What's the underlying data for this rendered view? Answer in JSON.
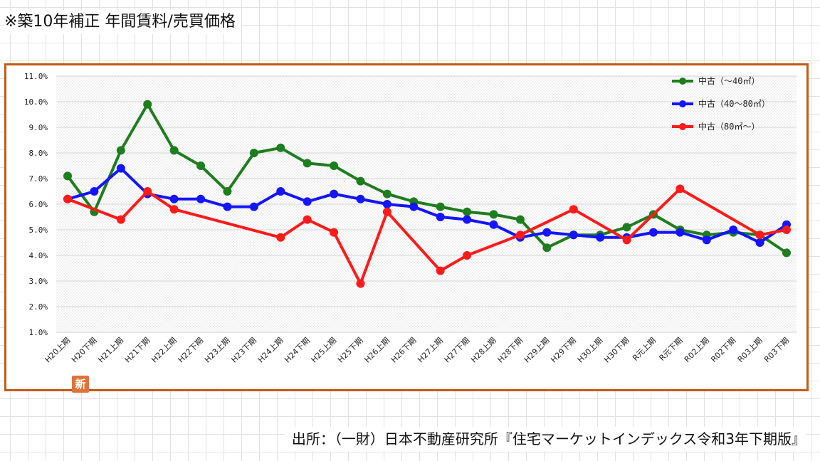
{
  "title": "※築10年補正 年間賃料/売買価格",
  "source": "出所：（一財）日本不動産研究所『住宅マーケットインデックス令和3年下期版』",
  "badge": "新",
  "chart_data": {
    "type": "line",
    "categories": [
      "H20上期",
      "H20下期",
      "H21上期",
      "H21下期",
      "H22上期",
      "H22下期",
      "H23上期",
      "H23下期",
      "H24上期",
      "H24下期",
      "H25上期",
      "H25下期",
      "H26上期",
      "H26下期",
      "H27上期",
      "H27下期",
      "H28上期",
      "H28下期",
      "H29上期",
      "H29下期",
      "H30上期",
      "H30下期",
      "R元上期",
      "R元下期",
      "R02上期",
      "R02下期",
      "R03上期",
      "R03下期"
    ],
    "y_ticks": [
      "1.0%",
      "2.0%",
      "3.0%",
      "4.0%",
      "5.0%",
      "6.0%",
      "7.0%",
      "8.0%",
      "9.0%",
      "10.0%",
      "11.0%"
    ],
    "ylim": [
      1.0,
      11.0
    ],
    "grid": true,
    "legend_position": "top-right",
    "series": [
      {
        "name": "中古（～40㎡）",
        "color": "#1e7d1e",
        "values": [
          7.1,
          5.7,
          8.1,
          9.9,
          8.1,
          7.5,
          6.5,
          8.0,
          8.2,
          7.6,
          7.5,
          6.9,
          6.4,
          6.1,
          5.9,
          5.7,
          5.6,
          5.4,
          4.3,
          4.8,
          4.8,
          5.1,
          5.6,
          5.0,
          4.8,
          4.9,
          4.8,
          4.1
        ]
      },
      {
        "name": "中古（40～80㎡）",
        "color": "#1414ff",
        "values": [
          6.2,
          6.5,
          7.4,
          6.4,
          6.2,
          6.2,
          5.9,
          5.9,
          6.5,
          6.1,
          6.4,
          6.2,
          6.0,
          5.9,
          5.5,
          5.4,
          5.2,
          4.7,
          4.9,
          4.8,
          4.7,
          4.7,
          4.9,
          4.9,
          4.6,
          5.0,
          4.5,
          5.2
        ]
      },
      {
        "name": "中古（80㎡～）",
        "color": "#ff1a1a",
        "values": [
          6.2,
          null,
          5.4,
          6.5,
          5.8,
          null,
          null,
          null,
          4.7,
          5.4,
          4.9,
          2.9,
          5.7,
          null,
          3.4,
          4.0,
          null,
          4.8,
          null,
          5.8,
          null,
          4.6,
          null,
          6.6,
          null,
          null,
          4.8,
          5.0
        ]
      }
    ]
  }
}
